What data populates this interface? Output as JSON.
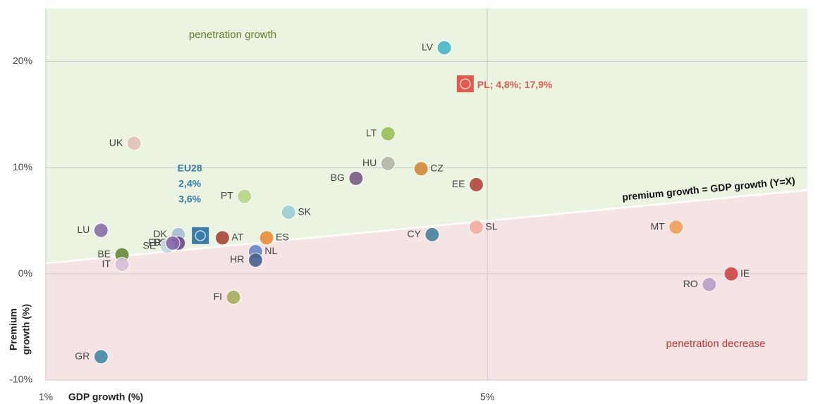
{
  "chart_data": {
    "type": "scatter",
    "x_label": "GDP growth (%)",
    "y_label": [
      "Premium",
      "growth (%)"
    ],
    "annotations": {
      "upper": "penetration growth",
      "lower": "penetration decrease",
      "diagonal": "premium growth = GDP growth (Y=X)"
    },
    "xlim": [
      1,
      7.9
    ],
    "ylim": [
      -10,
      25
    ],
    "xticks": [
      {
        "value": 1,
        "label": "1%"
      },
      {
        "value": 5,
        "label": "5%"
      }
    ],
    "yticks": [
      {
        "value": -10,
        "label": "-10%"
      },
      {
        "value": 0,
        "label": "0%"
      },
      {
        "value": 10,
        "label": "10%"
      },
      {
        "value": 20,
        "label": "20%"
      }
    ],
    "grid": true,
    "diagonal": true,
    "region_colors": {
      "upper": "#ebf3e1",
      "lower": "#f6e3e3"
    },
    "points": [
      {
        "name": "LV",
        "x": 4.61,
        "y": 21.3,
        "color": "#4bb8c8"
      },
      {
        "name": "UK",
        "x": 1.8,
        "y": 12.3,
        "color": "#e3c3b8"
      },
      {
        "name": "LT",
        "x": 4.1,
        "y": 13.2,
        "color": "#9bc05a"
      },
      {
        "name": "HU",
        "x": 4.1,
        "y": 10.4,
        "color": "#b5b8a8"
      },
      {
        "name": "CZ",
        "x": 4.4,
        "y": 9.9,
        "color": "#d08a3c"
      },
      {
        "name": "BG",
        "x": 3.81,
        "y": 9.0,
        "color": "#7a6088"
      },
      {
        "name": "EE",
        "x": 4.9,
        "y": 8.4,
        "color": "#b5493e"
      },
      {
        "name": "PT",
        "x": 2.8,
        "y": 7.3,
        "color": "#bcd68a"
      },
      {
        "name": "SK",
        "x": 3.2,
        "y": 5.8,
        "color": "#9ccfd6"
      },
      {
        "name": "LU",
        "x": 1.5,
        "y": 4.1,
        "color": "#8872a8"
      },
      {
        "name": "DK",
        "x": 2.2,
        "y": 3.7,
        "color": "#a8bfd6"
      },
      {
        "name": "DE",
        "x": 2.2,
        "y": 2.9,
        "color": "#6a4e8c"
      },
      {
        "name": "SE",
        "x": 2.1,
        "y": 2.6,
        "color": "#c3d6e3"
      },
      {
        "name": "FR",
        "x": 2.15,
        "y": 2.9,
        "color": "#8a68a8"
      },
      {
        "name": "AT",
        "x": 2.6,
        "y": 3.4,
        "color": "#a84a3c"
      },
      {
        "name": "ES",
        "x": 3.0,
        "y": 3.4,
        "color": "#e8903c"
      },
      {
        "name": "NL",
        "x": 2.9,
        "y": 2.1,
        "color": "#6a88c8"
      },
      {
        "name": "HR",
        "x": 2.9,
        "y": 1.3,
        "color": "#4a6290"
      },
      {
        "name": "CY",
        "x": 4.5,
        "y": 3.7,
        "color": "#4a84a0"
      },
      {
        "name": "SL",
        "x": 4.9,
        "y": 4.4,
        "color": "#f2b0a0"
      },
      {
        "name": "MT",
        "x": 6.71,
        "y": 4.4,
        "color": "#f2a060"
      },
      {
        "name": "IE",
        "x": 7.21,
        "y": 0.0,
        "color": "#d04848"
      },
      {
        "name": "RO",
        "x": 7.01,
        "y": -1.0,
        "color": "#b8a0c8"
      },
      {
        "name": "BE",
        "x": 1.69,
        "y": 1.8,
        "color": "#6a8a3c"
      },
      {
        "name": "IT",
        "x": 1.69,
        "y": 0.9,
        "color": "#d8c0d8"
      },
      {
        "name": "FI",
        "x": 2.7,
        "y": -2.2,
        "color": "#a8b060"
      },
      {
        "name": "GR",
        "x": 1.5,
        "y": -7.8,
        "color": "#4a8ca8"
      }
    ],
    "highlights": [
      {
        "name": "EU28",
        "x": 2.4,
        "y": 3.6,
        "value_labels": [
          "2,4%",
          "3,6%"
        ],
        "color": "#3a7ca8"
      },
      {
        "name": "PL",
        "x": 4.8,
        "y": 17.9,
        "value_label": "PL; 4,8%; 17,9%",
        "color": "#e05a50"
      }
    ]
  }
}
